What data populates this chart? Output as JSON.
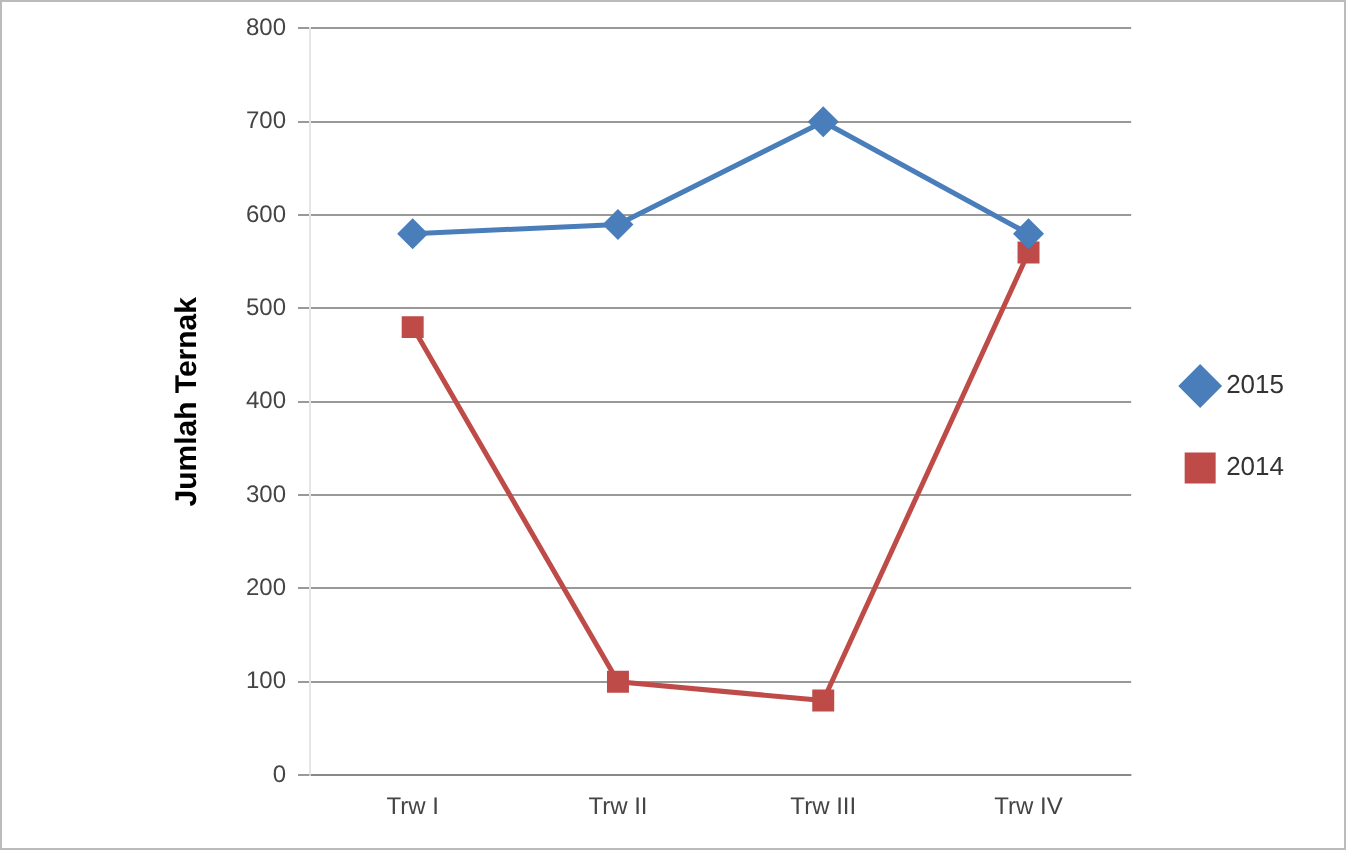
{
  "chart_data": {
    "type": "line",
    "ylabel": "Jumlah Ternak",
    "categories": [
      "Trw I",
      "Trw II",
      "Trw III",
      "Trw IV"
    ],
    "series": [
      {
        "name": "2015",
        "color": "#4a7ebb",
        "marker": "diamond",
        "values": [
          580,
          590,
          700,
          580
        ]
      },
      {
        "name": "2014",
        "color": "#be4b48",
        "marker": "square",
        "values": [
          480,
          100,
          80,
          560
        ]
      }
    ],
    "ylim": [
      0,
      800
    ],
    "yticks": [
      0,
      100,
      200,
      300,
      400,
      500,
      600,
      700,
      800
    ],
    "grid": "y",
    "legend": "right",
    "line_style": "solid"
  }
}
